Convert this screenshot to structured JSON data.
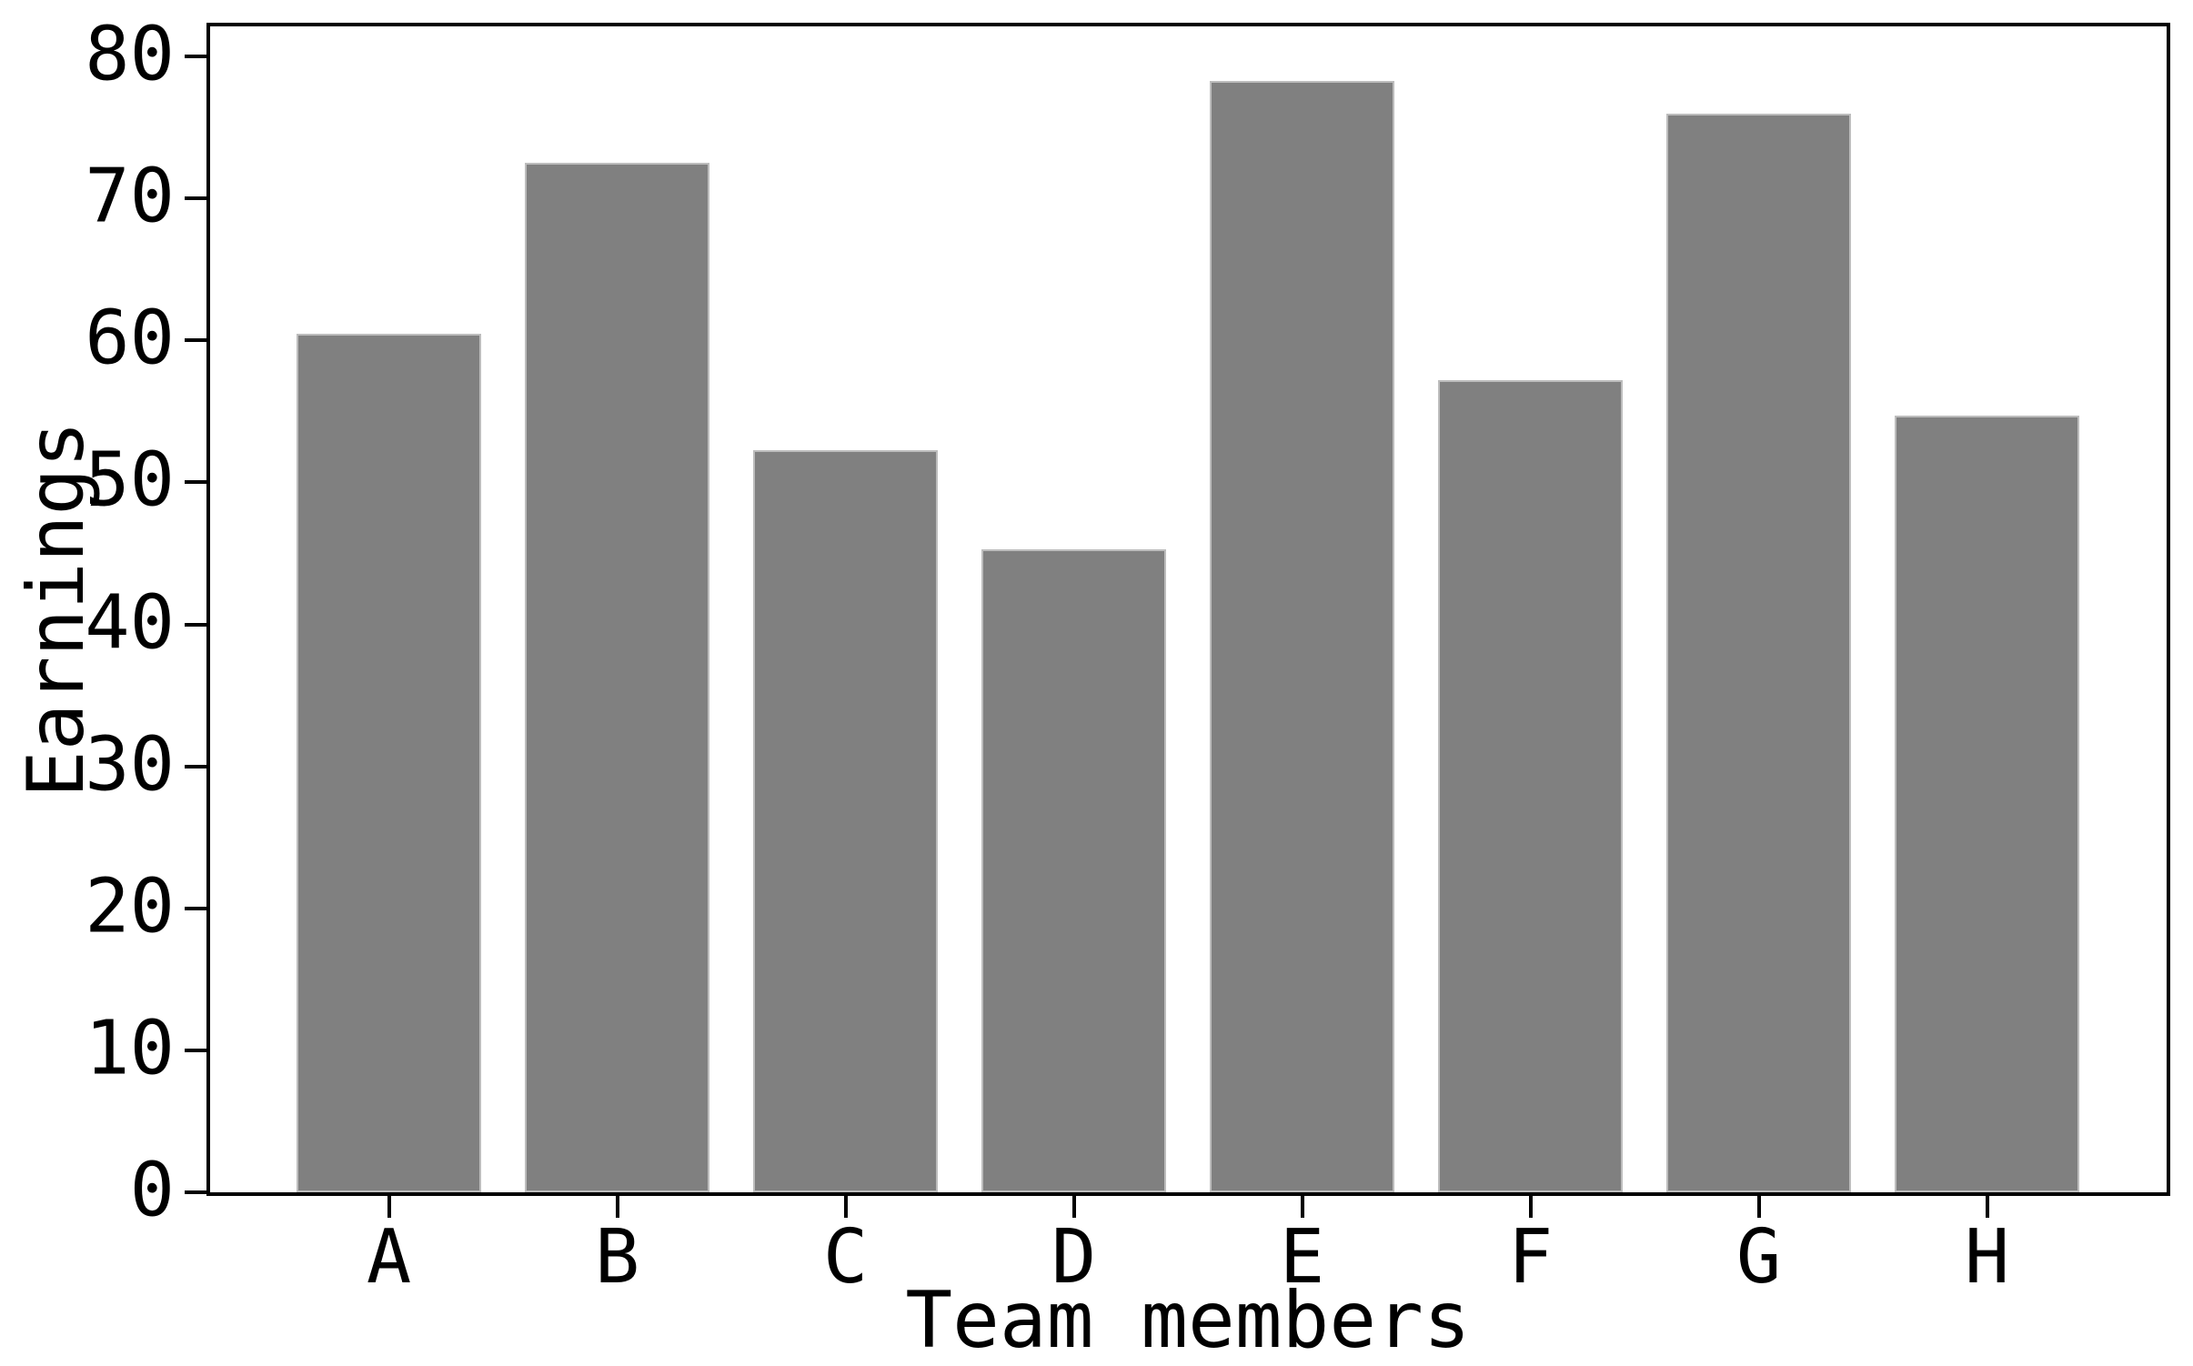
{
  "chart_data": {
    "type": "bar",
    "title": "",
    "xlabel": "Team members",
    "ylabel": "Earnings",
    "categories": [
      "A",
      "B",
      "C",
      "D",
      "E",
      "F",
      "G",
      "H"
    ],
    "values": [
      60.5,
      72.5,
      52.3,
      45.3,
      78.3,
      57.2,
      76.0,
      54.7
    ],
    "yticks": [
      0,
      10,
      20,
      30,
      40,
      50,
      60,
      70,
      80
    ],
    "ylim": [
      0,
      82.2
    ],
    "grid": false,
    "legend": null,
    "bar_color": "#808080",
    "bar_edge_color": "#bdbdbd",
    "axis_color": "#000000",
    "background_color": "#ffffff"
  }
}
